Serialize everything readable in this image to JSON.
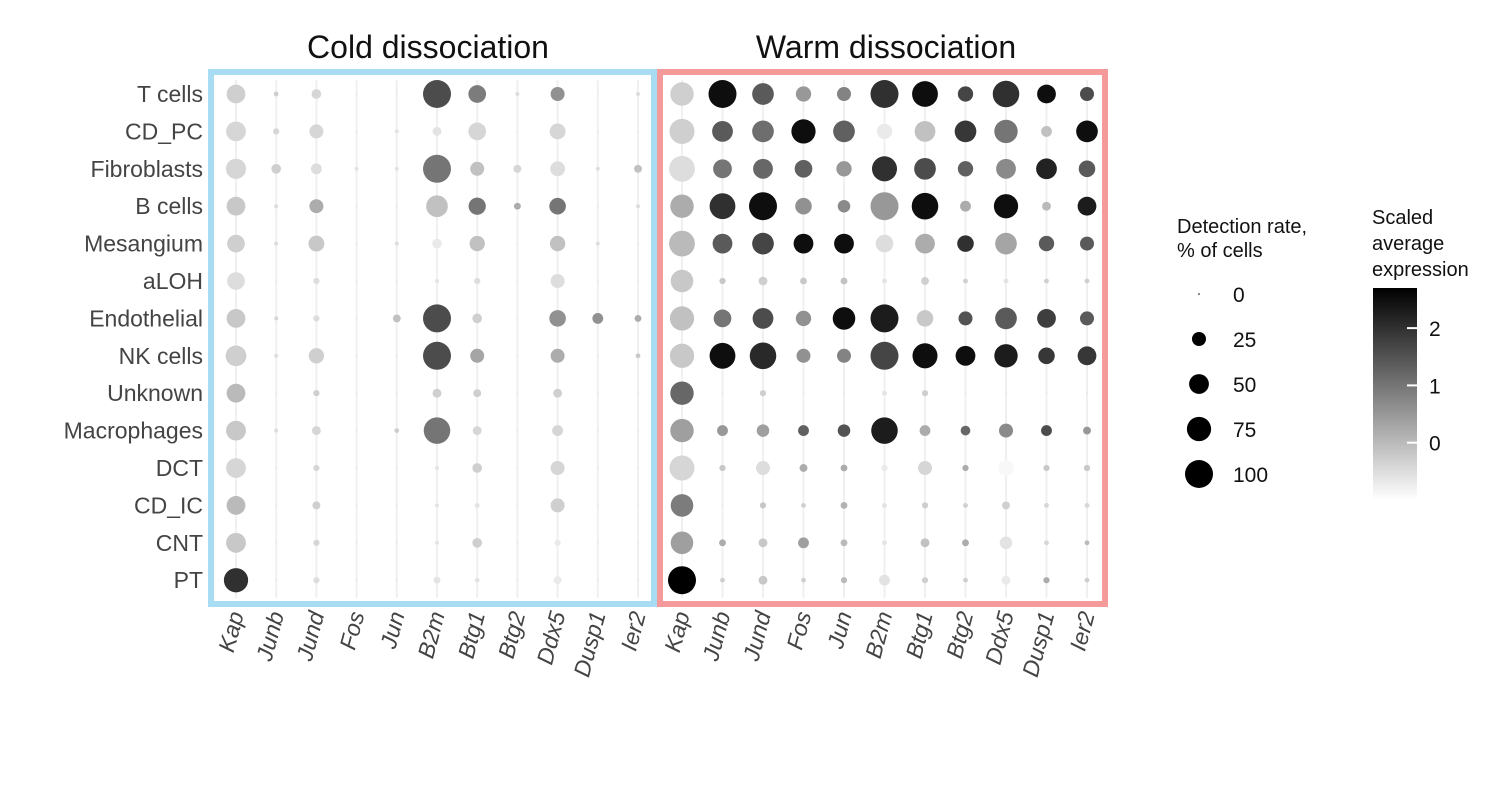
{
  "chart_data": {
    "type": "dotplot",
    "panels": [
      {
        "title": "Cold dissociation",
        "border_color": "#a8dcf2",
        "genes": [
          "Kap",
          "Junb",
          "Jund",
          "Fos",
          "Jun",
          "B2m",
          "Btg1",
          "Btg2",
          "Ddx5",
          "Dusp1",
          "Ier2"
        ],
        "detection": [
          [
            45,
            3,
            12,
            0,
            0,
            100,
            40,
            2,
            25,
            0,
            2
          ],
          [
            50,
            5,
            25,
            0,
            2,
            10,
            40,
            0,
            32,
            0,
            0
          ],
          [
            52,
            12,
            15,
            2,
            2,
            100,
            25,
            8,
            28,
            2,
            8
          ],
          [
            45,
            2,
            25,
            0,
            0,
            60,
            38,
            6,
            35,
            0,
            2
          ],
          [
            40,
            2,
            32,
            0,
            2,
            12,
            30,
            0,
            30,
            2,
            0
          ],
          [
            40,
            0,
            5,
            0,
            0,
            2,
            5,
            0,
            25,
            0,
            0
          ],
          [
            45,
            2,
            5,
            0,
            8,
            100,
            12,
            0,
            35,
            15,
            6
          ],
          [
            55,
            2,
            30,
            0,
            0,
            100,
            25,
            0,
            25,
            0,
            3
          ],
          [
            45,
            0,
            5,
            0,
            0,
            10,
            8,
            0,
            10,
            0,
            0
          ],
          [
            50,
            2,
            10,
            0,
            3,
            90,
            10,
            0,
            15,
            0,
            0
          ],
          [
            50,
            0,
            5,
            0,
            0,
            2,
            12,
            0,
            25,
            0,
            0
          ],
          [
            45,
            0,
            8,
            0,
            0,
            2,
            3,
            0,
            25,
            0,
            0
          ],
          [
            50,
            0,
            5,
            0,
            0,
            2,
            12,
            0,
            5,
            0,
            0
          ],
          [
            75,
            0,
            5,
            0,
            0,
            6,
            3,
            0,
            8,
            0,
            0
          ]
        ],
        "expression": [
          [
            -0.3,
            -0.3,
            -0.4,
            -0.6,
            -0.6,
            1.6,
            0.9,
            -0.5,
            0.6,
            -0.6,
            -0.5
          ],
          [
            -0.4,
            -0.4,
            -0.4,
            -0.6,
            -0.6,
            -0.6,
            -0.4,
            -0.6,
            -0.4,
            -0.6,
            -0.6
          ],
          [
            -0.4,
            -0.3,
            -0.5,
            -0.6,
            -0.6,
            1.0,
            -0.1,
            -0.4,
            -0.5,
            -0.5,
            -0.1
          ],
          [
            -0.2,
            -0.5,
            0.2,
            -0.6,
            -0.6,
            -0.1,
            1.0,
            0.2,
            1.0,
            -0.6,
            -0.5
          ],
          [
            -0.3,
            -0.5,
            -0.2,
            -0.6,
            -0.5,
            -0.7,
            -0.1,
            -0.6,
            -0.1,
            -0.5,
            -0.6
          ],
          [
            -0.5,
            -0.6,
            -0.5,
            -0.6,
            -0.6,
            -0.6,
            -0.5,
            -0.6,
            -0.5,
            -0.6,
            -0.6
          ],
          [
            -0.2,
            -0.4,
            -0.5,
            -0.6,
            -0.1,
            1.6,
            -0.3,
            -0.6,
            0.6,
            0.6,
            0.2
          ],
          [
            -0.3,
            -0.5,
            -0.3,
            -0.6,
            -0.6,
            1.6,
            0.3,
            -0.6,
            0.2,
            -0.6,
            -0.2
          ],
          [
            0.0,
            -0.6,
            -0.3,
            -0.6,
            -0.6,
            -0.3,
            -0.3,
            -0.6,
            -0.3,
            -0.6,
            -0.6
          ],
          [
            -0.2,
            -0.5,
            -0.4,
            -0.6,
            -0.3,
            1.0,
            -0.4,
            -0.6,
            -0.4,
            -0.6,
            -0.6
          ],
          [
            -0.4,
            -0.6,
            -0.4,
            -0.6,
            -0.6,
            -0.6,
            -0.3,
            -0.6,
            -0.4,
            -0.6,
            -0.6
          ],
          [
            0.0,
            -0.6,
            -0.3,
            -0.6,
            -0.6,
            -0.6,
            -0.6,
            -0.6,
            -0.3,
            -0.6,
            -0.6
          ],
          [
            -0.2,
            -0.6,
            -0.4,
            -0.6,
            -0.6,
            -0.6,
            -0.3,
            -0.6,
            -0.7,
            -0.6,
            -0.6
          ],
          [
            2.0,
            -0.6,
            -0.5,
            -0.6,
            -0.6,
            -0.6,
            -0.6,
            -0.6,
            -0.7,
            -0.6,
            -0.6
          ]
        ]
      },
      {
        "title": "Warm dissociation",
        "border_color": "#f59a9a",
        "genes": [
          "Kap",
          "Junb",
          "Jund",
          "Fos",
          "Jun",
          "B2m",
          "Btg1",
          "Btg2",
          "Ddx5",
          "Dusp1",
          "Ier2"
        ],
        "detection": [
          [
            70,
            100,
            60,
            30,
            25,
            100,
            85,
            30,
            90,
            45,
            25
          ],
          [
            80,
            55,
            60,
            75,
            60,
            30,
            55,
            60,
            70,
            15,
            60
          ],
          [
            85,
            45,
            50,
            40,
            30,
            80,
            60,
            30,
            50,
            55,
            35
          ],
          [
            70,
            85,
            100,
            35,
            20,
            100,
            90,
            15,
            75,
            10,
            45
          ],
          [
            85,
            50,
            60,
            50,
            50,
            40,
            50,
            35,
            60,
            30,
            25
          ],
          [
            65,
            5,
            10,
            6,
            6,
            3,
            8,
            3,
            3,
            3,
            3
          ],
          [
            75,
            40,
            55,
            30,
            65,
            100,
            35,
            25,
            60,
            45,
            25
          ],
          [
            75,
            85,
            90,
            25,
            25,
            100,
            80,
            50,
            70,
            35,
            45
          ],
          [
            70,
            0,
            5,
            0,
            0,
            3,
            5,
            0,
            0,
            0,
            0
          ],
          [
            70,
            15,
            20,
            15,
            20,
            90,
            15,
            12,
            25,
            15,
            8
          ],
          [
            80,
            5,
            25,
            8,
            6,
            5,
            25,
            5,
            30,
            5,
            5
          ],
          [
            65,
            0,
            5,
            3,
            6,
            3,
            5,
            3,
            8,
            3,
            3
          ],
          [
            65,
            6,
            10,
            15,
            6,
            3,
            10,
            6,
            20,
            3,
            3
          ],
          [
            100,
            3,
            10,
            3,
            5,
            15,
            5,
            3,
            10,
            5,
            3
          ]
        ],
        "expression": [
          [
            -0.3,
            2.5,
            1.4,
            0.5,
            0.8,
            2.0,
            2.5,
            1.7,
            2.0,
            2.5,
            1.6
          ],
          [
            -0.3,
            1.4,
            1.1,
            2.5,
            1.3,
            -0.7,
            -0.1,
            1.9,
            1.0,
            -0.1,
            2.5
          ],
          [
            -0.5,
            1.0,
            1.2,
            1.3,
            0.5,
            2.0,
            1.6,
            1.3,
            0.7,
            2.2,
            1.4
          ],
          [
            0.2,
            2.0,
            2.5,
            0.6,
            0.7,
            0.5,
            2.5,
            0.2,
            2.5,
            0.0,
            2.3
          ],
          [
            0.0,
            1.4,
            1.7,
            2.5,
            2.5,
            -0.5,
            0.2,
            2.0,
            0.3,
            1.4,
            1.4
          ],
          [
            -0.2,
            -0.2,
            -0.3,
            -0.2,
            -0.1,
            -0.6,
            -0.3,
            -0.3,
            -0.6,
            -0.3,
            -0.3
          ],
          [
            -0.1,
            1.0,
            1.6,
            0.6,
            2.5,
            2.3,
            -0.2,
            1.5,
            1.4,
            1.8,
            1.4
          ],
          [
            -0.2,
            2.5,
            2.1,
            0.6,
            0.8,
            1.7,
            2.5,
            2.5,
            2.3,
            1.9,
            1.9
          ],
          [
            1.2,
            -0.6,
            -0.3,
            -0.6,
            -0.6,
            -0.6,
            -0.3,
            -0.6,
            -0.6,
            -0.6,
            -0.6
          ],
          [
            0.4,
            0.5,
            0.4,
            1.3,
            1.5,
            2.3,
            0.2,
            1.2,
            0.7,
            1.6,
            0.5
          ],
          [
            -0.4,
            -0.2,
            -0.5,
            0.2,
            0.2,
            -0.7,
            -0.4,
            0.2,
            -0.9,
            -0.2,
            -0.2
          ],
          [
            0.9,
            -0.6,
            -0.2,
            -0.3,
            0.1,
            -0.6,
            -0.3,
            -0.3,
            -0.3,
            -0.4,
            -0.4
          ],
          [
            0.4,
            0.2,
            -0.2,
            0.4,
            0.0,
            -0.6,
            -0.1,
            0.2,
            -0.6,
            -0.4,
            0.0
          ],
          [
            2.7,
            -0.3,
            -0.2,
            -0.3,
            0.0,
            -0.6,
            -0.3,
            -0.3,
            -0.7,
            0.2,
            -0.3
          ]
        ]
      }
    ],
    "cell_types": [
      "T cells",
      "CD_PC",
      "Fibroblasts",
      "B cells",
      "Mesangium",
      "aLOH",
      "Endothelial",
      "NK cells",
      "Unknown",
      "Macrophages",
      "DCT",
      "CD_IC",
      "CNT",
      "PT"
    ],
    "size_legend": {
      "title": "Detection rate, % of cells",
      "title_lines": [
        "Detection rate,",
        "% of cells"
      ],
      "breaks": [
        0,
        25,
        50,
        75,
        100
      ]
    },
    "color_legend": {
      "title": "Scaled average expression",
      "title_lines": [
        "Scaled",
        "average",
        "expression"
      ],
      "ticks": [
        0,
        1,
        2
      ],
      "range": [
        -1.0,
        2.7
      ],
      "color_low": "#ffffff",
      "color_high": "#000000"
    }
  }
}
